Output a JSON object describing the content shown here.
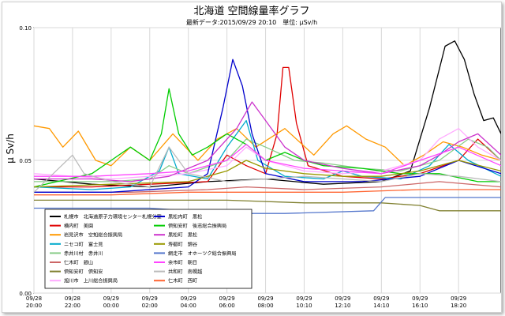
{
  "chart_data": {
    "type": "line",
    "title": "北海道 空間線量率グラフ",
    "subtitle": "最新データ:2015/09/29 20:10　単位: μSv/h",
    "ylabel": "μ Sv/h",
    "ylim": [
      0.0,
      0.1
    ],
    "yticks": [
      "0.00",
      "0.05",
      "0.10"
    ],
    "xlim": [
      0,
      24.2
    ],
    "xticks": [
      {
        "x": 0,
        "date": "09/28",
        "time": "20:00"
      },
      {
        "x": 2,
        "date": "09/28",
        "time": "22:00"
      },
      {
        "x": 4,
        "date": "09/29",
        "time": "00:00"
      },
      {
        "x": 6,
        "date": "09/29",
        "time": "02:00"
      },
      {
        "x": 8,
        "date": "09/29",
        "time": "04:00"
      },
      {
        "x": 10,
        "date": "09/29",
        "time": "06:00"
      },
      {
        "x": 12,
        "date": "09/29",
        "time": "08:00"
      },
      {
        "x": 14,
        "date": "09/29",
        "time": "10:10"
      },
      {
        "x": 16,
        "date": "09/29",
        "time": "12:10"
      },
      {
        "x": 18,
        "date": "09/29",
        "time": "14:10"
      },
      {
        "x": 20,
        "date": "09/29",
        "time": "16:10"
      },
      {
        "x": 22,
        "date": "09/29",
        "time": "18:20"
      }
    ],
    "grid": true,
    "legend_position": "bottom-left",
    "series": [
      {
        "name": "札幌市　北海道原子力環境センター札幌分室",
        "color": "#000000",
        "points": [
          [
            0,
            0.043
          ],
          [
            3,
            0.041
          ],
          [
            6,
            0.04
          ],
          [
            9,
            0.042
          ],
          [
            12,
            0.043
          ],
          [
            15,
            0.041
          ],
          [
            18,
            0.042
          ],
          [
            19.5,
            0.046
          ],
          [
            20.5,
            0.07
          ],
          [
            21.3,
            0.093
          ],
          [
            21.8,
            0.095
          ],
          [
            22.3,
            0.088
          ],
          [
            22.8,
            0.075
          ],
          [
            23.3,
            0.065
          ],
          [
            23.8,
            0.066
          ],
          [
            24.2,
            0.06
          ]
        ]
      },
      {
        "name": "横内町　美園",
        "color": "#e00000",
        "points": [
          [
            0,
            0.04
          ],
          [
            3,
            0.04
          ],
          [
            6,
            0.041
          ],
          [
            9,
            0.042
          ],
          [
            10,
            0.052
          ],
          [
            11,
            0.048
          ],
          [
            12,
            0.045
          ],
          [
            12.6,
            0.06
          ],
          [
            12.9,
            0.085
          ],
          [
            13.2,
            0.085
          ],
          [
            13.6,
            0.064
          ],
          [
            14.2,
            0.048
          ],
          [
            16,
            0.044
          ],
          [
            18,
            0.043
          ],
          [
            20,
            0.045
          ],
          [
            22,
            0.05
          ],
          [
            23,
            0.058
          ],
          [
            24.2,
            0.05
          ]
        ]
      },
      {
        "name": "岩見沢市　空知総合振興局",
        "color": "#ff9900",
        "points": [
          [
            0,
            0.063
          ],
          [
            0.8,
            0.062
          ],
          [
            1.5,
            0.055
          ],
          [
            2.3,
            0.061
          ],
          [
            3.2,
            0.05
          ],
          [
            4,
            0.048
          ],
          [
            5,
            0.055
          ],
          [
            6,
            0.05
          ],
          [
            7.2,
            0.06
          ],
          [
            8.5,
            0.05
          ],
          [
            9.5,
            0.058
          ],
          [
            10.5,
            0.062
          ],
          [
            11.5,
            0.055
          ],
          [
            13,
            0.062
          ],
          [
            14.5,
            0.052
          ],
          [
            15.5,
            0.06
          ],
          [
            16.2,
            0.063
          ],
          [
            17.2,
            0.058
          ],
          [
            18.2,
            0.055
          ],
          [
            19.2,
            0.048
          ],
          [
            20.2,
            0.052
          ],
          [
            21.2,
            0.057
          ],
          [
            22.2,
            0.055
          ],
          [
            23.2,
            0.052
          ],
          [
            24.2,
            0.05
          ]
        ]
      },
      {
        "name": "ニセコ町　富士見",
        "color": "#00aacc",
        "points": [
          [
            0,
            0.04
          ],
          [
            3,
            0.039
          ],
          [
            5,
            0.04
          ],
          [
            6.5,
            0.046
          ],
          [
            7,
            0.055
          ],
          [
            7.5,
            0.045
          ],
          [
            9,
            0.043
          ],
          [
            10,
            0.055
          ],
          [
            11,
            0.065
          ],
          [
            11.6,
            0.05
          ],
          [
            13,
            0.044
          ],
          [
            15,
            0.043
          ],
          [
            16,
            0.046
          ],
          [
            17,
            0.044
          ],
          [
            19,
            0.043
          ],
          [
            20.5,
            0.048
          ],
          [
            21.5,
            0.056
          ],
          [
            22.5,
            0.05
          ],
          [
            24.2,
            0.044
          ]
        ]
      },
      {
        "name": "赤井川村　赤井川",
        "color": "#88cc88",
        "points": [
          [
            0,
            0.042
          ],
          [
            4,
            0.042
          ],
          [
            6,
            0.043
          ],
          [
            7,
            0.048
          ],
          [
            8,
            0.045
          ],
          [
            10,
            0.05
          ],
          [
            11,
            0.058
          ],
          [
            12,
            0.055
          ],
          [
            13.5,
            0.05
          ],
          [
            15,
            0.049
          ],
          [
            17,
            0.047
          ],
          [
            19,
            0.046
          ],
          [
            21,
            0.05
          ],
          [
            22.5,
            0.058
          ],
          [
            23.5,
            0.055
          ],
          [
            24.2,
            0.05
          ]
        ]
      },
      {
        "name": "仁木町　銀山",
        "color": "#cc6666",
        "points": [
          [
            0,
            0.038
          ],
          [
            5,
            0.038
          ],
          [
            9,
            0.039
          ],
          [
            11,
            0.04
          ],
          [
            14,
            0.039
          ],
          [
            18,
            0.04
          ],
          [
            21,
            0.042
          ],
          [
            24.2,
            0.04
          ]
        ]
      },
      {
        "name": "倶知安町　倶知安",
        "color": "#808030",
        "points": [
          [
            0,
            0.035
          ],
          [
            6,
            0.035
          ],
          [
            10,
            0.035
          ],
          [
            14,
            0.034
          ],
          [
            18,
            0.034
          ],
          [
            20,
            0.033
          ],
          [
            21,
            0.031
          ],
          [
            23,
            0.031
          ],
          [
            24.2,
            0.031
          ]
        ]
      },
      {
        "name": "旭川市　上川総合振興局",
        "color": "#ffaaff",
        "points": [
          [
            0,
            0.045
          ],
          [
            2,
            0.044
          ],
          [
            4,
            0.043
          ],
          [
            6,
            0.044
          ],
          [
            8,
            0.045
          ],
          [
            10,
            0.048
          ],
          [
            11,
            0.055
          ],
          [
            12,
            0.05
          ],
          [
            14,
            0.046
          ],
          [
            16,
            0.045
          ],
          [
            18,
            0.046
          ],
          [
            20,
            0.05
          ],
          [
            21,
            0.058
          ],
          [
            22,
            0.062
          ],
          [
            23,
            0.055
          ],
          [
            24.2,
            0.05
          ]
        ]
      },
      {
        "name": "黒松内町　黒松",
        "color": "#0000cc",
        "points": [
          [
            0,
            0.038
          ],
          [
            4,
            0.038
          ],
          [
            8,
            0.04
          ],
          [
            9,
            0.045
          ],
          [
            9.8,
            0.07
          ],
          [
            10.3,
            0.088
          ],
          [
            10.8,
            0.078
          ],
          [
            11.3,
            0.06
          ],
          [
            12,
            0.045
          ],
          [
            14,
            0.042
          ],
          [
            17,
            0.042
          ],
          [
            20,
            0.044
          ],
          [
            22,
            0.05
          ],
          [
            24.2,
            0.045
          ]
        ]
      },
      {
        "name": "倶知安町　後志総合振興局",
        "color": "#00cc00",
        "points": [
          [
            0,
            0.04
          ],
          [
            3,
            0.045
          ],
          [
            4,
            0.05
          ],
          [
            5,
            0.055
          ],
          [
            6,
            0.05
          ],
          [
            6.6,
            0.06
          ],
          [
            7,
            0.077
          ],
          [
            7.5,
            0.06
          ],
          [
            8.2,
            0.052
          ],
          [
            9,
            0.055
          ],
          [
            10,
            0.06
          ],
          [
            11,
            0.056
          ],
          [
            12,
            0.05
          ],
          [
            13,
            0.053
          ],
          [
            14,
            0.05
          ],
          [
            15,
            0.048
          ],
          [
            17,
            0.047
          ],
          [
            19,
            0.045
          ],
          [
            21,
            0.045
          ],
          [
            23,
            0.042
          ],
          [
            24.2,
            0.042
          ]
        ]
      },
      {
        "name": "黒松町　黒松",
        "color": "#cc33cc",
        "points": [
          [
            0,
            0.043
          ],
          [
            3,
            0.043
          ],
          [
            5,
            0.042
          ],
          [
            7,
            0.044
          ],
          [
            9,
            0.05
          ],
          [
            10.5,
            0.062
          ],
          [
            11.3,
            0.072
          ],
          [
            12,
            0.065
          ],
          [
            13,
            0.055
          ],
          [
            14,
            0.05
          ],
          [
            16,
            0.047
          ],
          [
            18,
            0.045
          ],
          [
            20,
            0.048
          ],
          [
            21,
            0.052
          ],
          [
            22,
            0.057
          ],
          [
            23,
            0.06
          ],
          [
            24.2,
            0.052
          ]
        ]
      },
      {
        "name": "寿都町　錦谷",
        "color": "#999900",
        "points": [
          [
            0,
            0.04
          ],
          [
            4,
            0.041
          ],
          [
            8,
            0.042
          ],
          [
            10,
            0.046
          ],
          [
            11,
            0.05
          ],
          [
            12,
            0.047
          ],
          [
            14,
            0.045
          ],
          [
            16,
            0.044
          ],
          [
            18,
            0.044
          ],
          [
            20,
            0.046
          ],
          [
            22,
            0.05
          ],
          [
            24.2,
            0.046
          ]
        ]
      },
      {
        "name": "網走市　オホーツク総合振興局",
        "color": "#5577cc",
        "points": [
          [
            0,
            0.032
          ],
          [
            6,
            0.032
          ],
          [
            8,
            0.031
          ],
          [
            9,
            0.03
          ],
          [
            13,
            0.03
          ],
          [
            17.6,
            0.031
          ],
          [
            18.2,
            0.036
          ],
          [
            19,
            0.036
          ],
          [
            21,
            0.036
          ],
          [
            24.2,
            0.036
          ]
        ]
      },
      {
        "name": "余市町　朝日",
        "color": "#ff44ff",
        "points": [
          [
            0,
            0.044
          ],
          [
            3,
            0.044
          ],
          [
            6,
            0.045
          ],
          [
            8,
            0.046
          ],
          [
            10,
            0.05
          ],
          [
            11,
            0.056
          ],
          [
            12,
            0.05
          ],
          [
            14,
            0.047
          ],
          [
            16,
            0.046
          ],
          [
            18,
            0.045
          ],
          [
            20,
            0.05
          ],
          [
            22,
            0.055
          ],
          [
            24.2,
            0.048
          ]
        ]
      },
      {
        "name": "共和町　南幌越",
        "color": "#bbbbbb",
        "points": [
          [
            0,
            0.038
          ],
          [
            2,
            0.052
          ],
          [
            2.6,
            0.045
          ],
          [
            4,
            0.042
          ],
          [
            6,
            0.04
          ],
          [
            7,
            0.055
          ],
          [
            8,
            0.045
          ],
          [
            10,
            0.042
          ],
          [
            12,
            0.043
          ],
          [
            14,
            0.044
          ],
          [
            16,
            0.043
          ],
          [
            18,
            0.042
          ],
          [
            20,
            0.045
          ],
          [
            22,
            0.044
          ],
          [
            24.2,
            0.042
          ]
        ]
      },
      {
        "name": "仁木町　西町",
        "color": "#ff6633",
        "points": [
          [
            0,
            0.037
          ],
          [
            4,
            0.037
          ],
          [
            8,
            0.038
          ],
          [
            12,
            0.038
          ],
          [
            16,
            0.038
          ],
          [
            20,
            0.039
          ],
          [
            24.2,
            0.039
          ]
        ]
      }
    ]
  }
}
